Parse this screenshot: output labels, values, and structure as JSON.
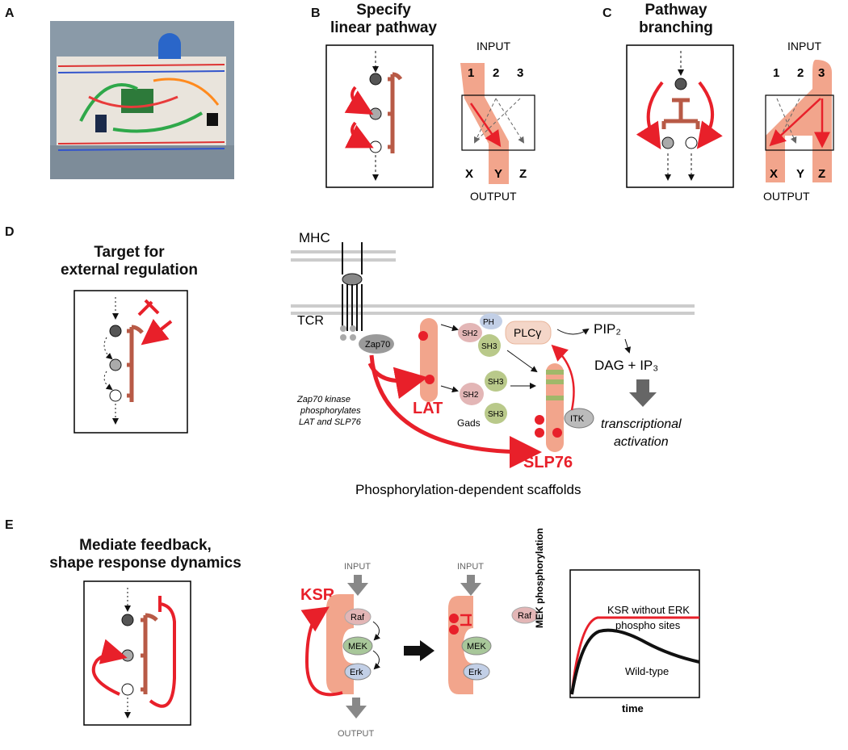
{
  "panels": {
    "a": {
      "label": "A"
    },
    "b": {
      "label": "B",
      "title_line1": "Specify",
      "title_line2": "linear pathway",
      "input": "INPUT",
      "output": "OUTPUT",
      "inputs": [
        "1",
        "2",
        "3"
      ],
      "outputs": [
        "X",
        "Y",
        "Z"
      ]
    },
    "c": {
      "label": "C",
      "title_line1": "Pathway",
      "title_line2": "branching",
      "input": "INPUT",
      "output": "OUTPUT",
      "inputs": [
        "1",
        "2",
        "3"
      ],
      "outputs": [
        "X",
        "Y",
        "Z"
      ]
    },
    "d": {
      "label": "D",
      "title_line1": "Target for",
      "title_line2": "external regulation",
      "mhc": "MHC",
      "tcr": "TCR",
      "zap70": "Zap70",
      "p": "P",
      "ph": "PH",
      "sh2": "SH2",
      "sh3": "SH3",
      "plc": "PLCγ",
      "pip2": "PIP₂",
      "dag": "DAG + IP₃",
      "lat": "LAT",
      "gads": "Gads",
      "itk": "ITK",
      "slp76": "SLP76",
      "note_line1": "Zap70  kinase",
      "note_line2": "phosphorylates",
      "note_line3": "LAT and SLP76",
      "transc_line1": "transcriptional",
      "transc_line2": "activation",
      "caption": "Phosphorylation-dependent scaffolds"
    },
    "e": {
      "label": "E",
      "title_line1": "Mediate feedback,",
      "title_line2": "shape response dynamics",
      "ksr": "KSR",
      "input": "INPUT",
      "output": "OUTPUT",
      "raf": "Raf",
      "mek": "MEK",
      "erk": "Erk",
      "ylabel": "MEK phosphorylation",
      "xlabel": "time",
      "legend_line1": "KSR without ERK",
      "legend_line2": "phospho sites",
      "wildtype": "Wild-type"
    }
  },
  "colors": {
    "red": "#e8202a",
    "salmon": "#f2a58c",
    "scaffold": "#b85a46",
    "gray": "#8d8d8d",
    "pink": "#e3b6b6",
    "green": "#b9c98a",
    "blue": "#c2cfe6",
    "mek": "#a8c79a"
  }
}
